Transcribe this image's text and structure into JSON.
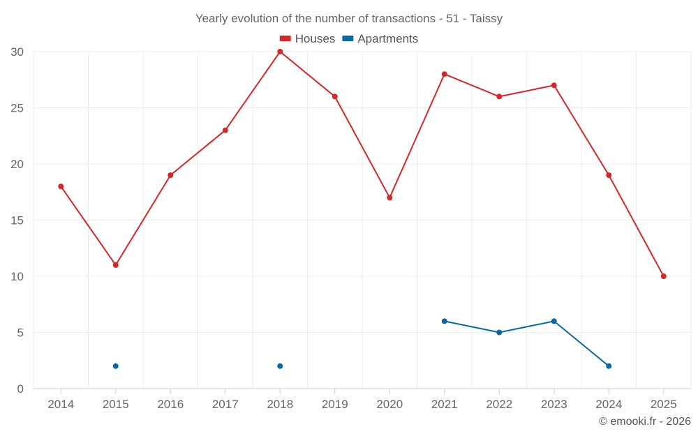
{
  "chart_data": {
    "type": "line",
    "title": "Yearly evolution of the number of transactions - 51 - Taissy",
    "categories": [
      "2014",
      "2015",
      "2016",
      "2017",
      "2018",
      "2019",
      "2020",
      "2021",
      "2022",
      "2023",
      "2024",
      "2025"
    ],
    "series": [
      {
        "name": "Houses",
        "color": "#d62728",
        "values": [
          18,
          11,
          19,
          23,
          30,
          26,
          17,
          28,
          26,
          27,
          19,
          10
        ]
      },
      {
        "name": "Apartments",
        "color": "#0868a0",
        "values": [
          null,
          2,
          null,
          null,
          2,
          null,
          null,
          6,
          5,
          6,
          2,
          null
        ]
      }
    ],
    "ylim": [
      0,
      30
    ],
    "yticks": [
      0,
      5,
      10,
      15,
      20,
      25,
      30
    ],
    "grid": true,
    "legend": "top-center",
    "xlabel": "",
    "ylabel": ""
  },
  "credit": "© emooki.fr - 2026"
}
